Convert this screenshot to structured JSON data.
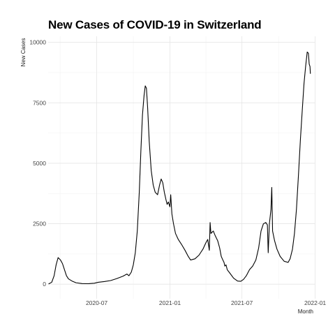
{
  "chart_data": {
    "type": "line",
    "title": "New Cases of COVID-19 in Switzerland",
    "xlabel": "Month",
    "ylabel": "New Cases",
    "xlim": [
      "2020-03-01",
      "2021-12-31"
    ],
    "ylim": [
      -600,
      10250
    ],
    "x_ticks": [
      {
        "date": "2020-07-01",
        "label": "2020-07"
      },
      {
        "date": "2021-01-01",
        "label": "2021-01"
      },
      {
        "date": "2021-07-01",
        "label": "2021-07"
      },
      {
        "date": "2022-01-01",
        "label": "2022-01"
      }
    ],
    "y_ticks": [
      {
        "value": 0,
        "label": "0"
      },
      {
        "value": 2500,
        "label": "2500"
      },
      {
        "value": 5000,
        "label": "5000"
      },
      {
        "value": 7500,
        "label": "7500"
      },
      {
        "value": 10000,
        "label": "10000"
      }
    ],
    "grid": true,
    "line_color": "#000000",
    "series": [
      {
        "points": [
          [
            "2020-03-02",
            10
          ],
          [
            "2020-03-10",
            80
          ],
          [
            "2020-03-16",
            350
          ],
          [
            "2020-03-21",
            800
          ],
          [
            "2020-03-26",
            1100
          ],
          [
            "2020-04-01",
            1000
          ],
          [
            "2020-04-06",
            850
          ],
          [
            "2020-04-11",
            600
          ],
          [
            "2020-04-16",
            350
          ],
          [
            "2020-04-21",
            220
          ],
          [
            "2020-04-30",
            130
          ],
          [
            "2020-05-10",
            60
          ],
          [
            "2020-05-25",
            25
          ],
          [
            "2020-06-10",
            20
          ],
          [
            "2020-06-25",
            40
          ],
          [
            "2020-07-05",
            80
          ],
          [
            "2020-07-20",
            110
          ],
          [
            "2020-08-05",
            150
          ],
          [
            "2020-08-20",
            230
          ],
          [
            "2020-09-05",
            330
          ],
          [
            "2020-09-15",
            420
          ],
          [
            "2020-09-20",
            350
          ],
          [
            "2020-09-26",
            500
          ],
          [
            "2020-10-01",
            800
          ],
          [
            "2020-10-06",
            1300
          ],
          [
            "2020-10-11",
            2200
          ],
          [
            "2020-10-16",
            3800
          ],
          [
            "2020-10-20",
            5500
          ],
          [
            "2020-10-24",
            7000
          ],
          [
            "2020-10-28",
            7800
          ],
          [
            "2020-10-31",
            8200
          ],
          [
            "2020-11-03",
            8100
          ],
          [
            "2020-11-06",
            7300
          ],
          [
            "2020-11-10",
            5900
          ],
          [
            "2020-11-15",
            4700
          ],
          [
            "2020-11-20",
            4100
          ],
          [
            "2020-11-25",
            3800
          ],
          [
            "2020-12-01",
            3700
          ],
          [
            "2020-12-06",
            4100
          ],
          [
            "2020-12-10",
            4350
          ],
          [
            "2020-12-14",
            4200
          ],
          [
            "2020-12-18",
            3800
          ],
          [
            "2020-12-22",
            3500
          ],
          [
            "2020-12-25",
            3300
          ],
          [
            "2020-12-28",
            3400
          ],
          [
            "2021-01-01",
            3200
          ],
          [
            "2021-01-03",
            3700
          ],
          [
            "2021-01-06",
            2900
          ],
          [
            "2021-01-10",
            2500
          ],
          [
            "2021-01-15",
            2100
          ],
          [
            "2021-01-22",
            1850
          ],
          [
            "2021-01-30",
            1650
          ],
          [
            "2021-02-08",
            1400
          ],
          [
            "2021-02-16",
            1150
          ],
          [
            "2021-02-22",
            1000
          ],
          [
            "2021-03-05",
            1050
          ],
          [
            "2021-03-15",
            1200
          ],
          [
            "2021-03-25",
            1450
          ],
          [
            "2021-04-01",
            1700
          ],
          [
            "2021-04-06",
            1850
          ],
          [
            "2021-04-10",
            1400
          ],
          [
            "2021-04-12",
            2550
          ],
          [
            "2021-04-14",
            2100
          ],
          [
            "2021-04-20",
            2200
          ],
          [
            "2021-04-25",
            2000
          ],
          [
            "2021-05-01",
            1800
          ],
          [
            "2021-05-06",
            1500
          ],
          [
            "2021-05-10",
            1150
          ],
          [
            "2021-05-14",
            1000
          ],
          [
            "2021-05-17",
            900
          ],
          [
            "2021-05-19",
            750
          ],
          [
            "2021-05-22",
            800
          ],
          [
            "2021-05-25",
            600
          ],
          [
            "2021-06-01",
            450
          ],
          [
            "2021-06-10",
            250
          ],
          [
            "2021-06-20",
            130
          ],
          [
            "2021-06-28",
            120
          ],
          [
            "2021-07-05",
            200
          ],
          [
            "2021-07-12",
            350
          ],
          [
            "2021-07-20",
            600
          ],
          [
            "2021-07-28",
            750
          ],
          [
            "2021-08-05",
            1000
          ],
          [
            "2021-08-12",
            1500
          ],
          [
            "2021-08-18",
            2200
          ],
          [
            "2021-08-24",
            2500
          ],
          [
            "2021-08-30",
            2550
          ],
          [
            "2021-09-03",
            2450
          ],
          [
            "2021-09-05",
            1300
          ],
          [
            "2021-09-08",
            2500
          ],
          [
            "2021-09-12",
            3100
          ],
          [
            "2021-09-14",
            4000
          ],
          [
            "2021-09-16",
            2200
          ],
          [
            "2021-09-21",
            1800
          ],
          [
            "2021-09-27",
            1450
          ],
          [
            "2021-10-05",
            1150
          ],
          [
            "2021-10-15",
            950
          ],
          [
            "2021-10-25",
            900
          ],
          [
            "2021-10-30",
            1050
          ],
          [
            "2021-11-05",
            1450
          ],
          [
            "2021-11-10",
            2100
          ],
          [
            "2021-11-15",
            3100
          ],
          [
            "2021-11-20",
            4500
          ],
          [
            "2021-11-25",
            6000
          ],
          [
            "2021-11-30",
            7300
          ],
          [
            "2021-12-04",
            8300
          ],
          [
            "2021-12-08",
            9000
          ],
          [
            "2021-12-12",
            9600
          ],
          [
            "2021-12-15",
            9550
          ],
          [
            "2021-12-17",
            9100
          ],
          [
            "2021-12-19",
            9000
          ],
          [
            "2021-12-20",
            8700
          ]
        ]
      }
    ]
  }
}
